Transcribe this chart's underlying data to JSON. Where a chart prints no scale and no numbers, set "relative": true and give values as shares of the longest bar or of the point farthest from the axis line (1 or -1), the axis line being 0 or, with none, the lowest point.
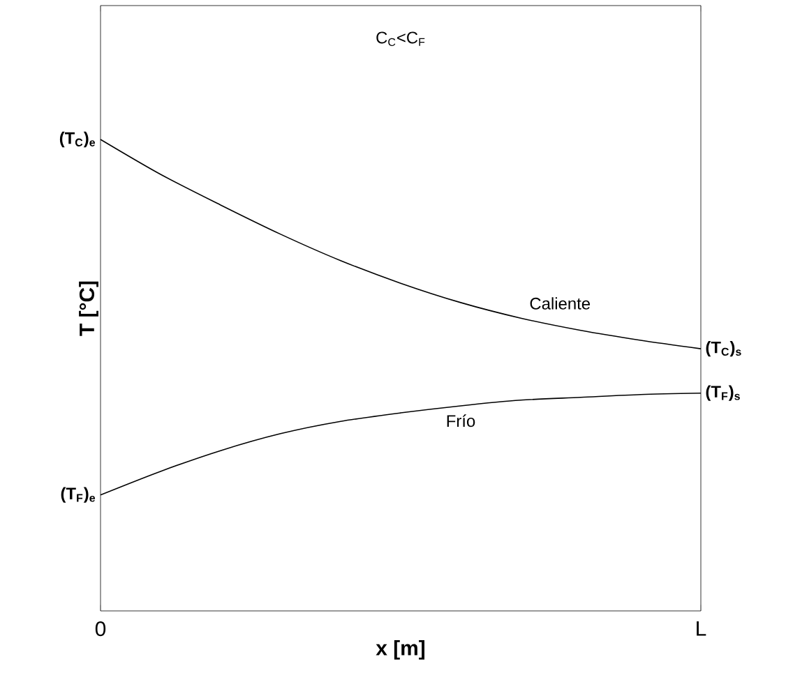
{
  "chart_data": {
    "type": "line",
    "relative": true,
    "xlabel": "x [m]",
    "ylabel": "T [°C]",
    "categories": [
      "0",
      null,
      null,
      null,
      null,
      null,
      null,
      null,
      null,
      null,
      "L"
    ],
    "series": [
      {
        "name": "Caliente",
        "color": "#000000",
        "values": [
          1.0,
          0.926,
          0.861,
          0.799,
          0.743,
          0.695,
          0.654,
          0.621,
          0.595,
          0.574,
          0.556
        ]
      },
      {
        "name": "Frío",
        "color": "#000000",
        "values": [
          0.246,
          0.296,
          0.34,
          0.376,
          0.402,
          0.42,
          0.435,
          0.447,
          0.453,
          0.459,
          0.462
        ]
      }
    ],
    "annotations": [
      "C$_{C}$<C$_{F}$",
      {
        "text": "(T$_{C}$)$_{e}$",
        "x": "0",
        "y": 1.0
      },
      {
        "text": "(T$_{C}$)$_{s}$",
        "x": "L",
        "y": 0.556
      },
      {
        "text": "(T$_{F}$)$_{s}$",
        "x": "L",
        "y": 0.462
      },
      {
        "text": "(T$_{F}$)$_{e}$",
        "x": "0",
        "y": 0.246
      }
    ]
  }
}
